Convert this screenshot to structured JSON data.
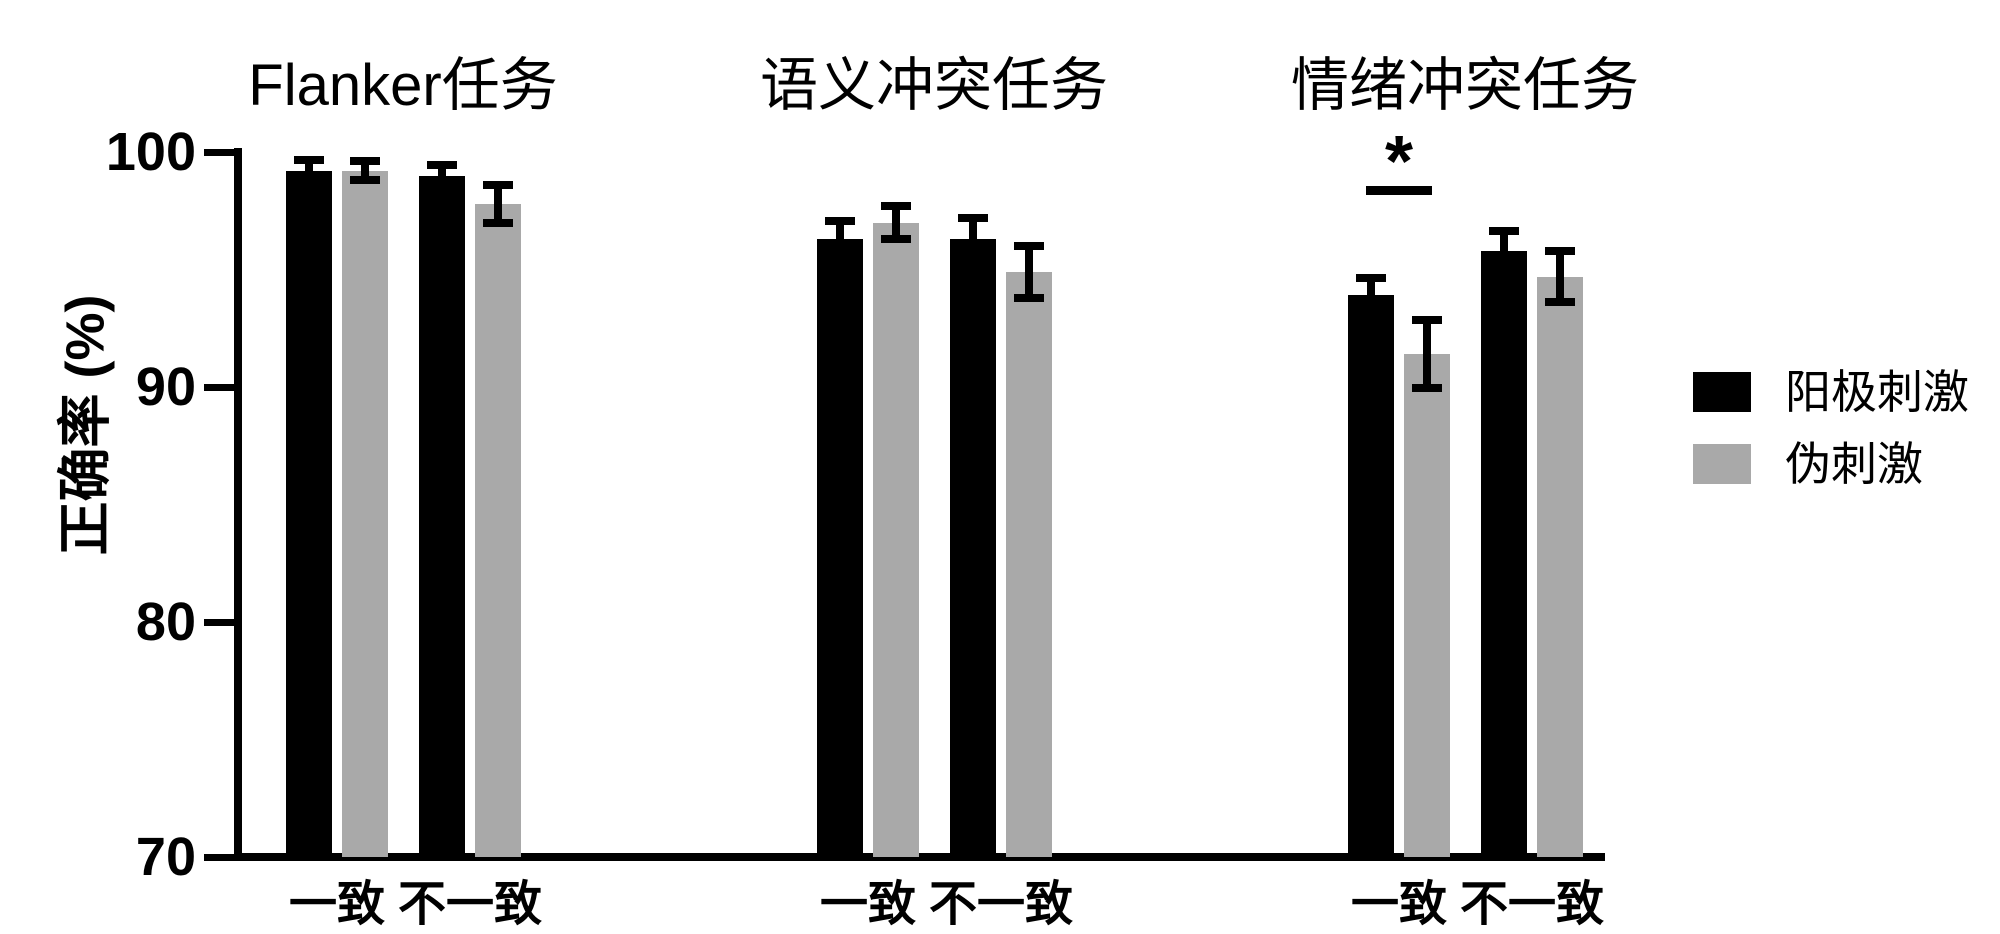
{
  "chart_data": {
    "type": "bar",
    "title": "",
    "xlabel": "",
    "ylabel": "正确率 (%)",
    "ylim": [
      70,
      100
    ],
    "yticks": [
      100,
      90,
      80,
      70
    ],
    "grid": false,
    "legend_position": "right",
    "legend": [
      {
        "label": "阳极刺激",
        "color": "#000000"
      },
      {
        "label": "伪刺激",
        "color": "#a9a9a9"
      }
    ],
    "panels": [
      {
        "title": "Flanker任务",
        "categories": [
          "一致",
          "不一致"
        ],
        "series": [
          {
            "name": "阳极刺激",
            "color": "#000000",
            "values": [
              99.2,
              99.0
            ],
            "errors": [
              0.45,
              0.45
            ]
          },
          {
            "name": "伪刺激",
            "color": "#a9a9a9",
            "values": [
              99.2,
              97.8
            ],
            "errors": [
              0.4,
              0.8
            ]
          }
        ]
      },
      {
        "title": "语义冲突任务",
        "categories": [
          "一致",
          "不一致"
        ],
        "series": [
          {
            "name": "阳极刺激",
            "color": "#000000",
            "values": [
              96.3,
              96.3
            ],
            "errors": [
              0.75,
              0.9
            ]
          },
          {
            "name": "伪刺激",
            "color": "#a9a9a9",
            "values": [
              97.0,
              94.9
            ],
            "errors": [
              0.7,
              1.1
            ]
          }
        ]
      },
      {
        "title": "情绪冲突任务",
        "categories": [
          "一致",
          "不一致"
        ],
        "series": [
          {
            "name": "阳极刺激",
            "color": "#000000",
            "values": [
              93.9,
              95.8
            ],
            "errors": [
              0.75,
              0.85
            ]
          },
          {
            "name": "伪刺激",
            "color": "#a9a9a9",
            "values": [
              91.4,
              94.7
            ],
            "errors": [
              1.45,
              1.1
            ]
          }
        ],
        "significance": {
          "symbol": "*",
          "category": "一致",
          "between": [
            "阳极刺激",
            "伪刺激"
          ]
        }
      }
    ]
  }
}
